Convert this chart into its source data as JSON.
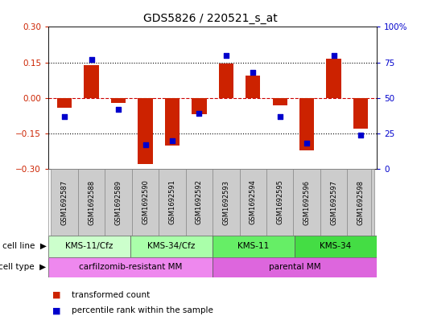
{
  "title": "GDS5826 / 220521_s_at",
  "samples": [
    "GSM1692587",
    "GSM1692588",
    "GSM1692589",
    "GSM1692590",
    "GSM1692591",
    "GSM1692592",
    "GSM1692593",
    "GSM1692594",
    "GSM1692595",
    "GSM1692596",
    "GSM1692597",
    "GSM1692598"
  ],
  "red_bars": [
    -0.04,
    0.14,
    -0.02,
    -0.28,
    -0.2,
    -0.07,
    0.145,
    0.095,
    -0.03,
    -0.22,
    0.165,
    -0.13
  ],
  "blue_squares": [
    37,
    77,
    42,
    17,
    20,
    39,
    80,
    68,
    37,
    18,
    80,
    24
  ],
  "ylim_left": [
    -0.3,
    0.3
  ],
  "ylim_right": [
    0,
    100
  ],
  "yticks_left": [
    -0.3,
    -0.15,
    0.0,
    0.15,
    0.3
  ],
  "yticks_right": [
    0,
    25,
    50,
    75,
    100
  ],
  "bar_color": "#cc2200",
  "square_color": "#0000cc",
  "cell_line_groups": [
    {
      "label": "KMS-11/Cfz",
      "start": 0,
      "end": 3,
      "color": "#ccffcc"
    },
    {
      "label": "KMS-34/Cfz",
      "start": 3,
      "end": 6,
      "color": "#aaffaa"
    },
    {
      "label": "KMS-11",
      "start": 6,
      "end": 9,
      "color": "#66ee66"
    },
    {
      "label": "KMS-34",
      "start": 9,
      "end": 12,
      "color": "#44dd44"
    }
  ],
  "cell_type_groups": [
    {
      "label": "carfilzomib-resistant MM",
      "start": 0,
      "end": 6,
      "color": "#ee88ee"
    },
    {
      "label": "parental MM",
      "start": 6,
      "end": 12,
      "color": "#dd66dd"
    }
  ],
  "sample_bg_color": "#cccccc",
  "legend_items": [
    {
      "label": "transformed count",
      "color": "#cc2200"
    },
    {
      "label": "percentile rank within the sample",
      "color": "#0000cc"
    }
  ],
  "hlines": [
    -0.15,
    0.0,
    0.15
  ],
  "hline_colors": [
    "black",
    "#cc0000",
    "black"
  ],
  "hline_styles": [
    ":",
    "--",
    ":"
  ]
}
